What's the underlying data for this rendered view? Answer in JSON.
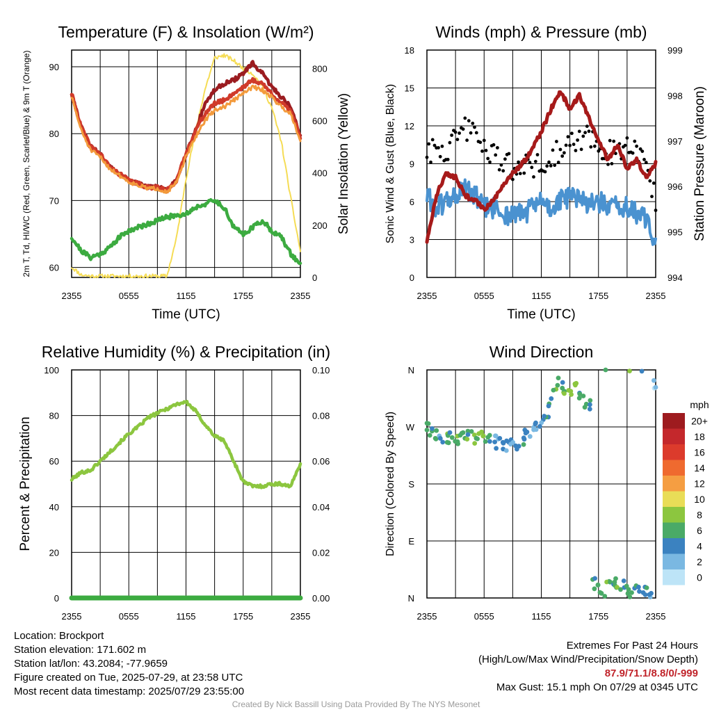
{
  "chart_data": [
    {
      "type": "line",
      "title": "Temperature (F) & Insolation (W/m²)",
      "xlabel": "Time (UTC)",
      "ylabel": "2m T, Td, HI/WC (Red, Green, Scarlet/Blue) & 9m T (Orange)",
      "ylabel2": "Solar Insolation (Yellow)",
      "x_ticks": [
        "2355",
        "0555",
        "1155",
        "1755",
        "2355"
      ],
      "ylim": [
        58.5,
        92.5
      ],
      "y_ticks": [
        60,
        70,
        80,
        90
      ],
      "y2lim": [
        0,
        870
      ],
      "y2_ticks": [
        0,
        200,
        400,
        600,
        800
      ],
      "grid": true,
      "hours": [
        0,
        1,
        2,
        3,
        4,
        5,
        6,
        7,
        8,
        9,
        10,
        11,
        12,
        13,
        14,
        15,
        16,
        17,
        18,
        19,
        20,
        21,
        22,
        23,
        24
      ],
      "series": [
        {
          "color": "#d03a2a",
          "values": [
            86,
            81,
            78,
            77,
            75,
            74,
            73,
            72.5,
            72,
            72,
            71.5,
            73,
            77,
            80.5,
            83,
            84.5,
            85,
            86,
            87,
            88,
            87.5,
            86,
            84.5,
            83.5,
            79.5
          ]
        },
        {
          "color": "#9b1c20",
          "values": [
            86,
            81,
            78,
            77,
            75,
            74,
            73,
            72.5,
            72,
            72,
            71.5,
            73,
            77,
            80.5,
            84.5,
            86.5,
            87.5,
            88,
            89,
            90.5,
            89,
            87,
            85.5,
            84,
            79.5
          ]
        },
        {
          "color": "#f39a3c",
          "values": [
            85.5,
            80.5,
            77.5,
            76.5,
            74.8,
            73.8,
            72.8,
            72.3,
            71.8,
            71.8,
            71.3,
            72.7,
            76.5,
            79.5,
            82,
            83.5,
            84,
            85,
            86,
            87,
            86.5,
            85.5,
            84,
            83,
            79
          ]
        },
        {
          "color": "#3cab40",
          "values": [
            64.5,
            62.5,
            61.5,
            62,
            63,
            64.5,
            65.5,
            66,
            66.5,
            67,
            67.5,
            67.8,
            68,
            69,
            69.5,
            70,
            69,
            66,
            65,
            66,
            67,
            65.5,
            64.5,
            62,
            60.5
          ]
        },
        {
          "color": "#f5dc55",
          "axis": "y2",
          "values": [
            40,
            10,
            5,
            5,
            5,
            5,
            5,
            5,
            5,
            5,
            5,
            150,
            380,
            560,
            720,
            840,
            850,
            830,
            800,
            780,
            730,
            650,
            520,
            300,
            100
          ]
        }
      ]
    },
    {
      "type": "line",
      "title": "Winds (mph) & Pressure (mb)",
      "xlabel": "Time (UTC)",
      "ylabel": "Sonic Wind & Gust (Blue, Black)",
      "ylabel2": "Station Pressure (Maroon)",
      "x_ticks": [
        "2355",
        "0555",
        "1155",
        "1755",
        "2355"
      ],
      "ylim": [
        0,
        18
      ],
      "y_ticks": [
        0,
        3,
        6,
        9,
        12,
        15,
        18
      ],
      "y2lim": [
        994,
        999
      ],
      "y2_ticks": [
        994,
        995,
        996,
        997,
        998,
        999
      ],
      "grid": true,
      "hours": [
        0,
        1,
        2,
        3,
        4,
        5,
        6,
        7,
        8,
        9,
        10,
        11,
        12,
        13,
        14,
        15,
        16,
        17,
        18,
        19,
        20,
        21,
        22,
        23,
        24
      ],
      "series": [
        {
          "color": "#4a92d0",
          "values": [
            6.5,
            5.5,
            6,
            6.5,
            7,
            6.5,
            5.5,
            5.5,
            5,
            5,
            5,
            5.5,
            6,
            5.5,
            6,
            6.5,
            6,
            6,
            6,
            5.5,
            5.5,
            5.5,
            5,
            4.5,
            3
          ]
        },
        {
          "color": "#000000",
          "style": "dots",
          "values": [
            10.5,
            9.5,
            10,
            11.5,
            12,
            11,
            10,
            9.5,
            9,
            8.5,
            8.5,
            9,
            9,
            9.5,
            10,
            10.5,
            11,
            11,
            10.5,
            10,
            9.5,
            10,
            10.5,
            9,
            6
          ]
        },
        {
          "color": "#a61a1a",
          "axis": "y2",
          "values": [
            994.8,
            995.8,
            996.3,
            996.2,
            995.8,
            995.7,
            995.5,
            995.7,
            996.0,
            996.3,
            996.5,
            996.8,
            997.2,
            997.7,
            998.1,
            997.7,
            998.0,
            997.5,
            997.0,
            996.6,
            996.9,
            996.4,
            996.6,
            996.2,
            996.5
          ]
        }
      ]
    },
    {
      "type": "line",
      "title": "Relative Humidity (%) & Precipitation (in)",
      "xlabel": "",
      "ylabel": "Percent & Precipitation",
      "x_ticks": [
        "2355",
        "0555",
        "1155",
        "1755",
        "2355"
      ],
      "ylim": [
        0,
        100
      ],
      "y_ticks": [
        0,
        20,
        40,
        60,
        80,
        100
      ],
      "y2lim": [
        0,
        0.1
      ],
      "y2_ticks": [
        "0.00",
        "0.02",
        "0.04",
        "0.06",
        "0.08",
        "0.10"
      ],
      "grid": true,
      "hours": [
        0,
        1,
        2,
        3,
        4,
        5,
        6,
        7,
        8,
        9,
        10,
        11,
        12,
        13,
        14,
        15,
        16,
        17,
        18,
        19,
        20,
        21,
        22,
        23,
        24
      ],
      "series": [
        {
          "color": "#8cc63f",
          "values": [
            52,
            55,
            56,
            60,
            64,
            68,
            72,
            75,
            79,
            81,
            83,
            85,
            86,
            82,
            76,
            71,
            69,
            60,
            51,
            49,
            49,
            50,
            50,
            49,
            59
          ]
        },
        {
          "color": "#3cab40",
          "axis": "y2",
          "values": [
            0,
            0,
            0,
            0,
            0,
            0,
            0,
            0,
            0,
            0,
            0,
            0,
            0,
            0,
            0,
            0,
            0,
            0,
            0,
            0,
            0,
            0,
            0,
            0,
            0
          ]
        }
      ]
    },
    {
      "type": "scatter",
      "title": "Wind Direction",
      "ylabel": "Direction (Colored By Speed)",
      "x_ticks": [
        "2355",
        "0555",
        "1155",
        "1755",
        "2355"
      ],
      "y_ticks": [
        "N",
        "E",
        "S",
        "W",
        "N"
      ],
      "ylim": [
        0,
        360
      ],
      "grid": true,
      "legend": {
        "title": "mph",
        "placement": "right",
        "labels": [
          "20+",
          "18",
          "16",
          "14",
          "12",
          "10",
          "8",
          "6",
          "4",
          "2",
          "0"
        ],
        "colors": [
          "#9e1b1f",
          "#c4282c",
          "#dc3b2c",
          "#ef6a2f",
          "#f59e42",
          "#e9dd57",
          "#8cc63f",
          "#4aaa67",
          "#3b82c0",
          "#7ab8e2",
          "#bde4f7"
        ]
      },
      "points": {
        "hours": [
          0,
          0.5,
          1,
          1.5,
          2,
          2.5,
          3,
          3.5,
          4,
          4.5,
          5,
          5.5,
          6,
          6.5,
          7,
          7.5,
          8,
          8.5,
          9,
          9.5,
          10,
          10.5,
          11,
          11.5,
          12,
          12.5,
          13,
          13.5,
          14,
          14.5,
          15,
          15.5,
          16,
          16.5,
          17,
          17.5,
          18,
          18.5,
          19,
          19.5,
          20,
          20.5,
          21,
          21.5,
          22,
          22.5,
          23,
          23.5,
          24
        ],
        "direction": [
          272,
          262,
          258,
          255,
          252,
          253,
          256,
          250,
          253,
          255,
          254,
          256,
          252,
          255,
          250,
          245,
          240,
          242,
          246,
          244,
          250,
          256,
          262,
          270,
          280,
          290,
          310,
          330,
          340,
          325,
          318,
          335,
          325,
          310,
          308,
          22,
          14,
          8,
          20,
          28,
          25,
          18,
          12,
          6,
          10,
          4,
          14,
          2,
          340
        ],
        "speed": [
          7,
          6,
          7,
          4,
          7,
          6,
          8,
          6,
          7,
          6,
          8,
          8,
          7,
          6,
          4,
          4,
          5,
          4,
          4,
          4,
          5,
          4,
          4,
          4,
          4,
          5,
          6,
          7,
          6,
          7,
          8,
          7,
          6,
          7,
          5,
          6,
          7,
          6,
          7,
          6,
          7,
          5,
          6,
          7,
          6,
          4,
          5,
          4,
          2
        ]
      }
    }
  ],
  "footer": {
    "location": "Location: Brockport",
    "elevation": "Station elevation: 171.602 m",
    "latlon": "Station lat/lon: 43.2084; -77.9659",
    "created": "Figure created on Tue, 2025-07-29, at 23:58 UTC",
    "recent": "Most recent data timestamp: 2025/07/29 23:55:00",
    "extremes_title": "Extremes For Past 24 Hours",
    "extremes_legend": "(High/Low/Max Wind/Precipitation/Snow Depth)",
    "extremes_values": "87.9/71.1/8.8/0/-999",
    "max_gust": "Max Gust: 15.1 mph On 07/29 at 0345 UTC",
    "credit": "Created By Nick Bassill Using Data Provided By The NYS Mesonet"
  }
}
